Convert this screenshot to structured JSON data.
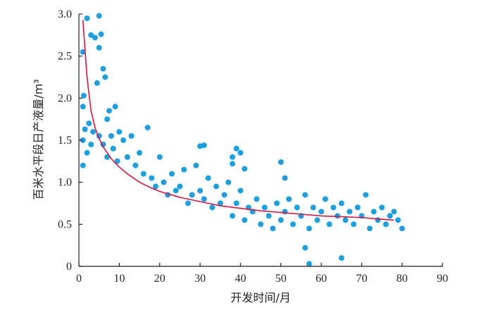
{
  "chart_data": {
    "type": "scatter",
    "title": "",
    "xlabel": "开发时间/月",
    "ylabel": "百米水平段日产液量/m³",
    "xlim": [
      0,
      90
    ],
    "ylim": [
      0,
      3.0
    ],
    "x_ticks": [
      0,
      10,
      20,
      30,
      40,
      50,
      60,
      70,
      80,
      90
    ],
    "y_ticks": [
      0,
      0.5,
      1.0,
      1.5,
      2.0,
      2.5,
      3.0
    ],
    "x_tick_labels": [
      "0",
      "10",
      "20",
      "30",
      "40",
      "50",
      "60",
      "70",
      "80",
      "90"
    ],
    "y_tick_labels": [
      "0",
      "0.5",
      "1.0",
      "1.5",
      "2.0",
      "2.5",
      "3.0"
    ],
    "grid": false,
    "legend": "none",
    "colors": {
      "points": "#1aa0e0",
      "fit_line": "#d9143c",
      "axis": "#231f20"
    },
    "scatter_x": [
      1,
      1,
      1,
      1,
      1.2,
      1.5,
      2,
      2,
      2.5,
      3,
      3,
      3.5,
      4,
      4.5,
      5,
      5,
      5,
      5.5,
      6,
      6,
      6.5,
      7,
      7,
      7.5,
      8,
      8.5,
      9,
      9.5,
      10,
      11,
      12,
      13,
      14,
      15,
      16,
      17,
      18,
      19,
      20,
      21,
      22,
      23,
      24,
      25,
      26,
      27,
      28,
      29,
      30,
      31,
      32,
      33,
      34,
      35,
      36,
      37,
      38,
      39,
      40,
      41,
      42,
      43,
      44,
      45,
      46,
      47,
      48,
      49,
      50,
      51,
      52,
      53,
      54,
      55,
      56,
      57,
      58,
      59,
      60,
      61,
      62,
      63,
      64,
      65,
      66,
      67,
      68,
      69,
      70,
      71,
      72,
      73,
      74,
      75,
      76,
      77,
      78,
      79,
      80,
      30,
      31,
      38,
      38,
      39,
      40,
      41,
      50,
      51,
      56,
      57,
      65
    ],
    "scatter_y": [
      1.2,
      1.5,
      1.9,
      2.55,
      2.03,
      1.63,
      2.95,
      1.35,
      1.7,
      2.75,
      1.45,
      1.6,
      2.72,
      2.18,
      2.98,
      2.6,
      1.55,
      2.76,
      2.35,
      1.45,
      2.25,
      1.75,
      1.3,
      1.85,
      1.55,
      1.4,
      1.9,
      1.25,
      1.6,
      1.5,
      1.3,
      1.55,
      1.2,
      1.35,
      1.1,
      1.65,
      1.05,
      0.95,
      1.3,
      1.0,
      0.85,
      1.1,
      0.9,
      0.95,
      1.15,
      0.75,
      0.85,
      1.2,
      0.9,
      0.8,
      1.05,
      0.7,
      0.95,
      0.75,
      0.85,
      1.0,
      0.6,
      0.75,
      0.9,
      0.55,
      0.7,
      0.65,
      0.8,
      0.5,
      0.7,
      0.6,
      0.45,
      0.75,
      0.55,
      0.65,
      0.8,
      0.5,
      0.7,
      0.6,
      0.85,
      0.45,
      0.7,
      0.55,
      0.65,
      0.8,
      0.5,
      0.7,
      0.6,
      0.75,
      0.55,
      0.65,
      0.5,
      0.7,
      0.6,
      0.85,
      0.45,
      0.65,
      0.55,
      0.7,
      0.5,
      0.6,
      0.65,
      0.55,
      0.45,
      1.43,
      1.44,
      1.22,
      1.3,
      1.4,
      1.35,
      1.16,
      1.24,
      1.05,
      0.22,
      0.03,
      0.1
    ],
    "fit_x": [
      1,
      2,
      3,
      4,
      5,
      6,
      8,
      10,
      12,
      15,
      18,
      20,
      25,
      30,
      35,
      40,
      45,
      50,
      55,
      60,
      65,
      70,
      75,
      78
    ],
    "fit_y": [
      2.93,
      2.25,
      1.85,
      1.65,
      1.52,
      1.42,
      1.28,
      1.18,
      1.1,
      1.0,
      0.93,
      0.89,
      0.82,
      0.77,
      0.72,
      0.69,
      0.66,
      0.64,
      0.62,
      0.6,
      0.59,
      0.58,
      0.56,
      0.55
    ]
  }
}
